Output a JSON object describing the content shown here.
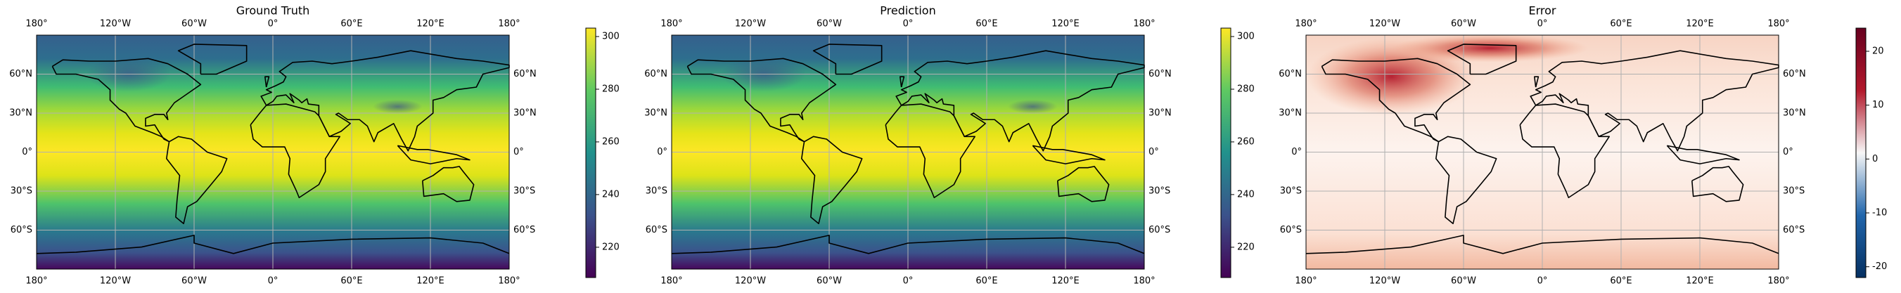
{
  "panels": [
    {
      "title": "Ground Truth",
      "colorbar": {
        "lim": [
          208.5,
          303.2
        ],
        "ticks": [
          220,
          240,
          260,
          280,
          300
        ],
        "colors": [
          "#440154",
          "#3b528b",
          "#21918c",
          "#5ec962",
          "#fde725"
        ]
      }
    },
    {
      "title": "Prediction",
      "colorbar": {
        "lim": [
          208.5,
          303.2
        ],
        "ticks": [
          220,
          240,
          260,
          280,
          300
        ],
        "colors": [
          "#440154",
          "#3b528b",
          "#21918c",
          "#5ec962",
          "#fde725"
        ]
      }
    },
    {
      "title": "Error",
      "colorbar": {
        "lim": [
          -22,
          24.3
        ],
        "ticks": [
          -20,
          -10,
          0,
          10,
          20
        ],
        "colors": [
          "#053061",
          "#2166ac",
          "#f7f7f7",
          "#b2182b",
          "#67001f"
        ]
      }
    }
  ],
  "lon_ticks": [
    {
      "value": -180,
      "label": "180°"
    },
    {
      "value": -120,
      "label": "120°W"
    },
    {
      "value": -60,
      "label": "60°W"
    },
    {
      "value": 0,
      "label": "0°"
    },
    {
      "value": 60,
      "label": "60°E"
    },
    {
      "value": 120,
      "label": "120°E"
    },
    {
      "value": 180,
      "label": "180°"
    }
  ],
  "lat_ticks": [
    {
      "value": 60,
      "label": "60°N"
    },
    {
      "value": 30,
      "label": "30°N"
    },
    {
      "value": 0,
      "label": "0°"
    },
    {
      "value": -30,
      "label": "30°S"
    },
    {
      "value": -60,
      "label": "60°S"
    }
  ],
  "grid": true
}
